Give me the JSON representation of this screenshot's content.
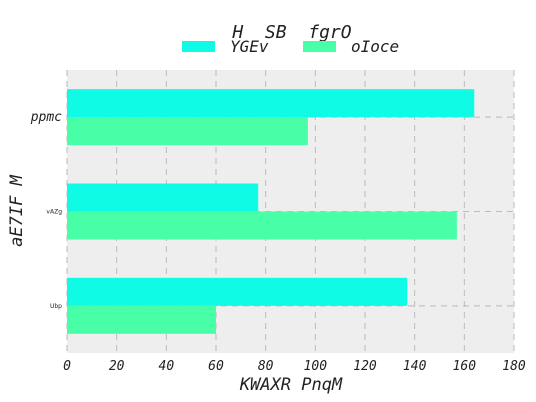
{
  "chart_data": {
    "type": "bar",
    "orientation": "horizontal",
    "title": "H  SB  fgrO",
    "xlabel": "KWAXR PnqM",
    "ylabel": "aE7IF M",
    "categories": [
      "ppmc",
      "vAZg",
      "Ubp"
    ],
    "series": [
      {
        "name": "YGEv",
        "values": [
          164,
          77,
          137
        ],
        "color": "#0ffbe5"
      },
      {
        "name": "oIoce",
        "values": [
          97,
          157,
          60
        ],
        "color": "#48ffa8"
      }
    ],
    "xlim": [
      0,
      180
    ],
    "xticks": [
      0,
      20,
      40,
      60,
      80,
      100,
      120,
      140,
      160,
      180
    ],
    "grid": true,
    "legend_position": "top-center",
    "background_color": "#eeeeee",
    "grid_color": "#bbbbbb"
  }
}
